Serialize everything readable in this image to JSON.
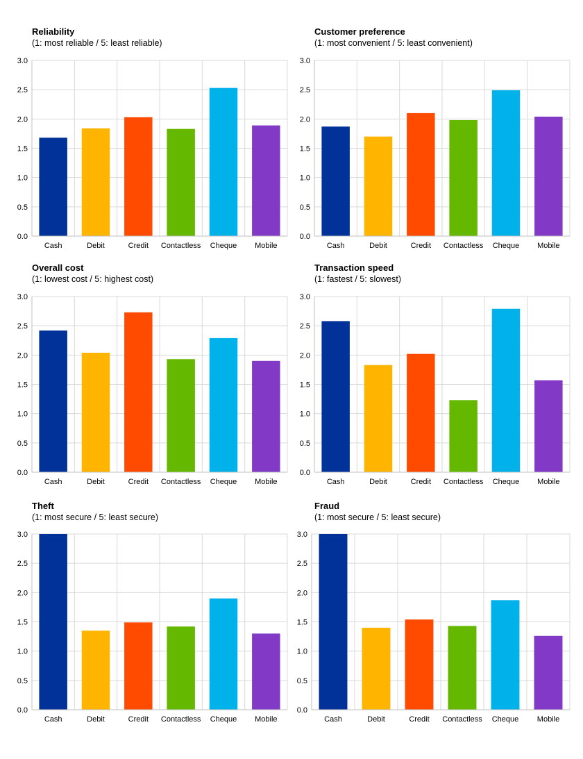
{
  "chart_data": [
    {
      "type": "bar",
      "title": "Reliability",
      "subtitle": "(1: most reliable / 5: least reliable)",
      "categories": [
        "Cash",
        "Debit",
        "Credit",
        "Contactless",
        "Cheque",
        "Mobile"
      ],
      "values": [
        1.68,
        1.84,
        2.03,
        1.83,
        2.53,
        1.89
      ],
      "ylim": [
        0,
        3.0
      ],
      "yticks": [
        "0.0",
        "0.5",
        "1.0",
        "1.5",
        "2.0",
        "2.5",
        "3.0"
      ],
      "grid": true
    },
    {
      "type": "bar",
      "title": "Customer preference",
      "subtitle": "(1: most convenient / 5: least convenient)",
      "categories": [
        "Cash",
        "Debit",
        "Credit",
        "Contactless",
        "Cheque",
        "Mobile"
      ],
      "values": [
        1.87,
        1.7,
        2.1,
        1.98,
        2.49,
        2.04
      ],
      "ylim": [
        0,
        3.0
      ],
      "yticks": [
        "0.0",
        "0.5",
        "1.0",
        "1.5",
        "2.0",
        "2.5",
        "3.0"
      ],
      "grid": true
    },
    {
      "type": "bar",
      "title": "Overall cost",
      "subtitle": "(1: lowest cost / 5: highest cost)",
      "categories": [
        "Cash",
        "Debit",
        "Credit",
        "Contactless",
        "Cheque",
        "Mobile"
      ],
      "values": [
        2.42,
        2.04,
        2.73,
        1.93,
        2.29,
        1.9
      ],
      "ylim": [
        0,
        3.0
      ],
      "yticks": [
        "0.0",
        "0.5",
        "1.0",
        "1.5",
        "2.0",
        "2.5",
        "3.0"
      ],
      "grid": true
    },
    {
      "type": "bar",
      "title": "Transaction speed",
      "subtitle": "(1: fastest / 5: slowest)",
      "categories": [
        "Cash",
        "Debit",
        "Credit",
        "Contactless",
        "Cheque",
        "Mobile"
      ],
      "values": [
        2.58,
        1.83,
        2.02,
        1.23,
        2.79,
        1.57
      ],
      "ylim": [
        0,
        3.0
      ],
      "yticks": [
        "0.0",
        "0.5",
        "1.0",
        "1.5",
        "2.0",
        "2.5",
        "3.0"
      ],
      "grid": true
    },
    {
      "type": "bar",
      "title": "Theft",
      "subtitle": "(1: most secure / 5: least secure)",
      "categories": [
        "Cash",
        "Debit",
        "Credit",
        "Contactless",
        "Cheque",
        "Mobile"
      ],
      "values": [
        3.0,
        1.35,
        1.49,
        1.42,
        1.9,
        1.3
      ],
      "ylim": [
        0,
        3.0
      ],
      "yticks": [
        "0.0",
        "0.5",
        "1.0",
        "1.5",
        "2.0",
        "2.5",
        "3.0"
      ],
      "grid": true
    },
    {
      "type": "bar",
      "title": "Fraud",
      "subtitle": "(1: most secure / 5: least secure)",
      "categories": [
        "Cash",
        "Debit",
        "Credit",
        "Contactless",
        "Cheque",
        "Mobile"
      ],
      "values": [
        3.0,
        1.4,
        1.54,
        1.43,
        1.87,
        1.26
      ],
      "ylim": [
        0,
        3.0
      ],
      "yticks": [
        "0.0",
        "0.5",
        "1.0",
        "1.5",
        "2.0",
        "2.5",
        "3.0"
      ],
      "grid": true
    }
  ],
  "bar_colors": [
    "#003299",
    "#ffb400",
    "#ff4b00",
    "#65b800",
    "#00b1ea",
    "#8139c6"
  ],
  "grid_color": "#d9d9d9",
  "axis_color": "#bfbfbf"
}
